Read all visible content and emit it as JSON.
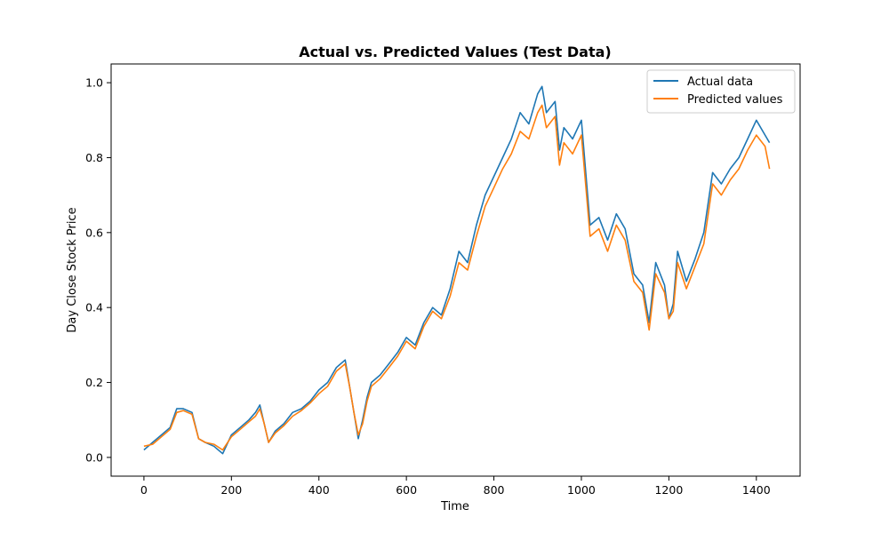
{
  "chart_data": {
    "type": "line",
    "title": "Actual vs. Predicted Values (Test Data)",
    "xlabel": "Time",
    "ylabel": "Day Close Stock Price",
    "xlim": [
      -75,
      1500
    ],
    "ylim": [
      -0.05,
      1.05
    ],
    "xticks": [
      0,
      200,
      400,
      600,
      800,
      1000,
      1200,
      1400
    ],
    "xtick_labels": [
      "0",
      "200",
      "400",
      "600",
      "800",
      "1000",
      "1200",
      "1400"
    ],
    "yticks": [
      0.0,
      0.2,
      0.4,
      0.6,
      0.8,
      1.0
    ],
    "ytick_labels": [
      "0.0",
      "0.2",
      "0.4",
      "0.6",
      "0.8",
      "1.0"
    ],
    "grid": false,
    "legend_position": "top-right",
    "series": [
      {
        "name": "Actual data",
        "color": "#1f77b4",
        "x": [
          0,
          20,
          40,
          60,
          75,
          90,
          110,
          125,
          140,
          160,
          180,
          200,
          220,
          240,
          255,
          265,
          275,
          285,
          300,
          320,
          340,
          360,
          380,
          400,
          420,
          440,
          460,
          470,
          480,
          490,
          500,
          510,
          520,
          540,
          560,
          580,
          600,
          620,
          640,
          660,
          680,
          700,
          720,
          740,
          760,
          780,
          800,
          820,
          840,
          860,
          880,
          900,
          910,
          920,
          940,
          950,
          960,
          980,
          1000,
          1020,
          1040,
          1060,
          1080,
          1100,
          1120,
          1140,
          1155,
          1170,
          1190,
          1200,
          1210,
          1220,
          1240,
          1260,
          1280,
          1300,
          1320,
          1340,
          1360,
          1380,
          1400,
          1420,
          1430
        ],
        "y": [
          0.02,
          0.04,
          0.06,
          0.08,
          0.13,
          0.13,
          0.12,
          0.05,
          0.04,
          0.03,
          0.01,
          0.06,
          0.08,
          0.1,
          0.12,
          0.14,
          0.09,
          0.04,
          0.07,
          0.09,
          0.12,
          0.13,
          0.15,
          0.18,
          0.2,
          0.24,
          0.26,
          0.19,
          0.12,
          0.05,
          0.1,
          0.16,
          0.2,
          0.22,
          0.25,
          0.28,
          0.32,
          0.3,
          0.36,
          0.4,
          0.38,
          0.45,
          0.55,
          0.52,
          0.62,
          0.7,
          0.75,
          0.8,
          0.85,
          0.92,
          0.89,
          0.97,
          0.99,
          0.92,
          0.95,
          0.82,
          0.88,
          0.85,
          0.9,
          0.62,
          0.64,
          0.58,
          0.65,
          0.61,
          0.49,
          0.46,
          0.36,
          0.52,
          0.46,
          0.37,
          0.41,
          0.55,
          0.47,
          0.53,
          0.6,
          0.76,
          0.73,
          0.77,
          0.8,
          0.85,
          0.9,
          0.86,
          0.84
        ]
      },
      {
        "name": "Predicted values",
        "color": "#ff7f0e",
        "x": [
          0,
          20,
          40,
          60,
          75,
          90,
          110,
          125,
          140,
          160,
          180,
          200,
          220,
          240,
          255,
          265,
          275,
          285,
          300,
          320,
          340,
          360,
          380,
          400,
          420,
          440,
          460,
          470,
          480,
          490,
          500,
          510,
          520,
          540,
          560,
          580,
          600,
          620,
          640,
          660,
          680,
          700,
          720,
          740,
          760,
          780,
          800,
          820,
          840,
          860,
          880,
          900,
          910,
          920,
          940,
          950,
          960,
          980,
          1000,
          1020,
          1040,
          1060,
          1080,
          1100,
          1120,
          1140,
          1155,
          1170,
          1190,
          1200,
          1210,
          1220,
          1240,
          1260,
          1280,
          1300,
          1320,
          1340,
          1360,
          1380,
          1400,
          1420,
          1430
        ],
        "y": [
          0.03,
          0.035,
          0.055,
          0.075,
          0.12,
          0.125,
          0.115,
          0.05,
          0.04,
          0.035,
          0.02,
          0.055,
          0.075,
          0.095,
          0.11,
          0.13,
          0.09,
          0.04,
          0.065,
          0.085,
          0.11,
          0.125,
          0.145,
          0.17,
          0.19,
          0.23,
          0.25,
          0.19,
          0.12,
          0.06,
          0.09,
          0.15,
          0.19,
          0.21,
          0.24,
          0.27,
          0.31,
          0.29,
          0.35,
          0.39,
          0.37,
          0.43,
          0.52,
          0.5,
          0.59,
          0.67,
          0.72,
          0.77,
          0.81,
          0.87,
          0.85,
          0.92,
          0.94,
          0.88,
          0.91,
          0.78,
          0.84,
          0.81,
          0.86,
          0.59,
          0.61,
          0.55,
          0.62,
          0.58,
          0.47,
          0.44,
          0.34,
          0.49,
          0.44,
          0.37,
          0.39,
          0.52,
          0.45,
          0.51,
          0.57,
          0.73,
          0.7,
          0.74,
          0.77,
          0.82,
          0.86,
          0.83,
          0.77
        ]
      }
    ]
  }
}
